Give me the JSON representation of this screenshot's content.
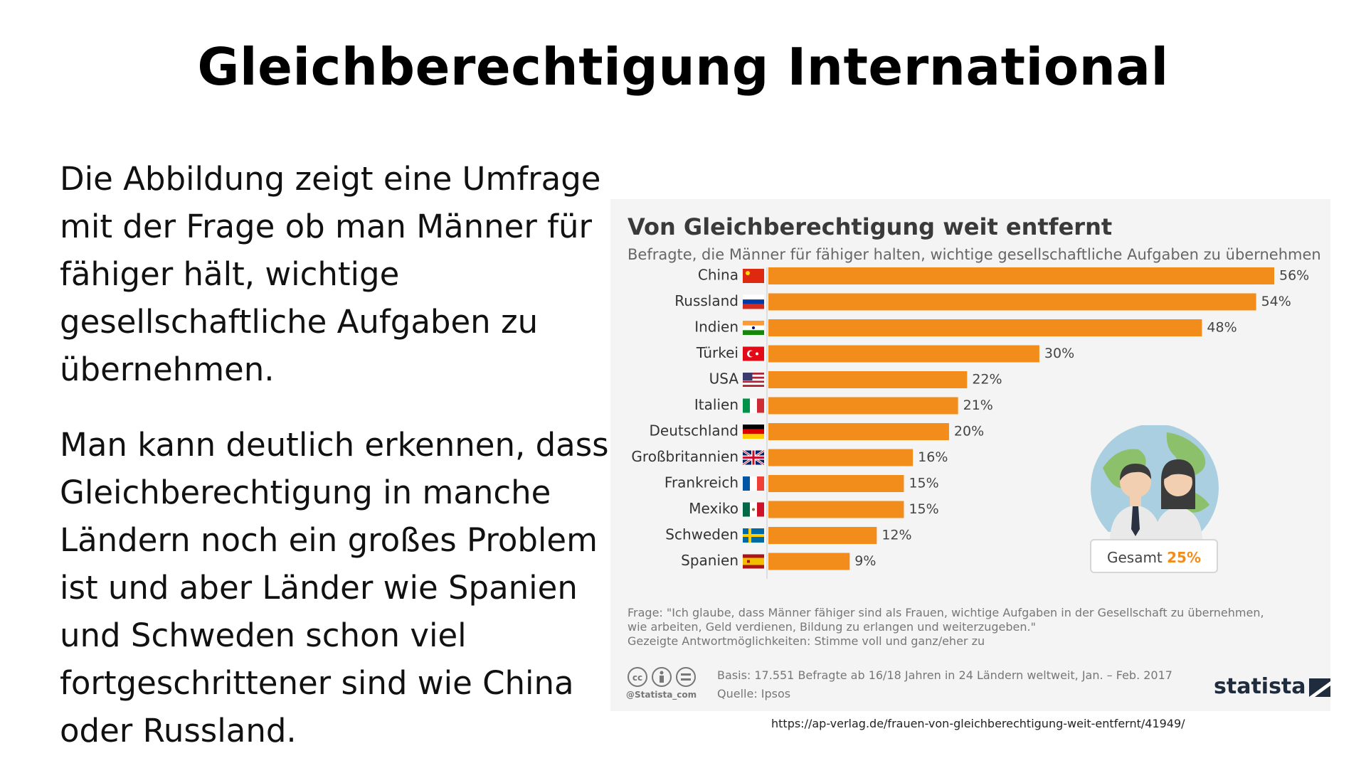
{
  "slide": {
    "title": "Gleichberechtigung International",
    "paragraph1": "Die Abbildung zeigt eine Umfrage mit der Frage ob man Männer für fähiger hält, wichtige gesellschaftliche Aufgaben zu übernehmen.",
    "paragraph2": "Man kann deutlich erkennen, dass Gleichberechtigung in manche Ländern noch ein großes Problem ist und aber Länder wie Spanien und Schweden schon viel fortgeschrittener sind wie China oder Russland.",
    "source_url": "https://ap-verlag.de/frauen-von-gleichberechtigung-weit-entfernt/41949/"
  },
  "chart_data": {
    "type": "bar",
    "orientation": "horizontal",
    "title": "Von Gleichberechtigung weit entfernt",
    "subtitle": "Befragte, die Männer für fähiger halten, wichtige gesellschaftliche Aufgaben zu übernehmen",
    "categories": [
      "China",
      "Russland",
      "Indien",
      "Türkei",
      "USA",
      "Italien",
      "Deutschland",
      "Großbritannien",
      "Frankreich",
      "Mexiko",
      "Schweden",
      "Spanien"
    ],
    "values": [
      56,
      54,
      48,
      30,
      22,
      21,
      20,
      16,
      15,
      15,
      12,
      9
    ],
    "value_labels": [
      "56%",
      "54%",
      "48%",
      "30%",
      "22%",
      "21%",
      "20%",
      "16%",
      "15%",
      "15%",
      "12%",
      "9%"
    ],
    "unit": "%",
    "xlim": [
      0,
      56
    ],
    "bar_color": "#f28c1a",
    "grid": false,
    "flags": [
      "china-flag",
      "russia-flag",
      "india-flag",
      "turkey-flag",
      "usa-flag",
      "italy-flag",
      "germany-flag",
      "uk-flag",
      "france-flag",
      "mexico-flag",
      "sweden-flag",
      "spain-flag"
    ],
    "total": {
      "label": "Gesamt",
      "value_label": "25%"
    },
    "footnote": [
      "Frage: \"Ich glaube, dass Männer fähiger sind als Frauen, wichtige Aufgaben in der Gesellschaft zu übernehmen,",
      "wie arbeiten, Geld verdienen, Bildung zu erlangen und weiterzugeben.\"",
      "Gezeigte Antwortmöglichkeiten: Stimme voll und ganz/eher zu"
    ],
    "basis": "Basis: 17.551 Befragte ab 16/18 Jahren in 24 Ländern weltweit, Jan. – Feb. 2017",
    "source": "Quelle: Ipsos",
    "handle": "@Statista_com",
    "brand": "statista"
  }
}
